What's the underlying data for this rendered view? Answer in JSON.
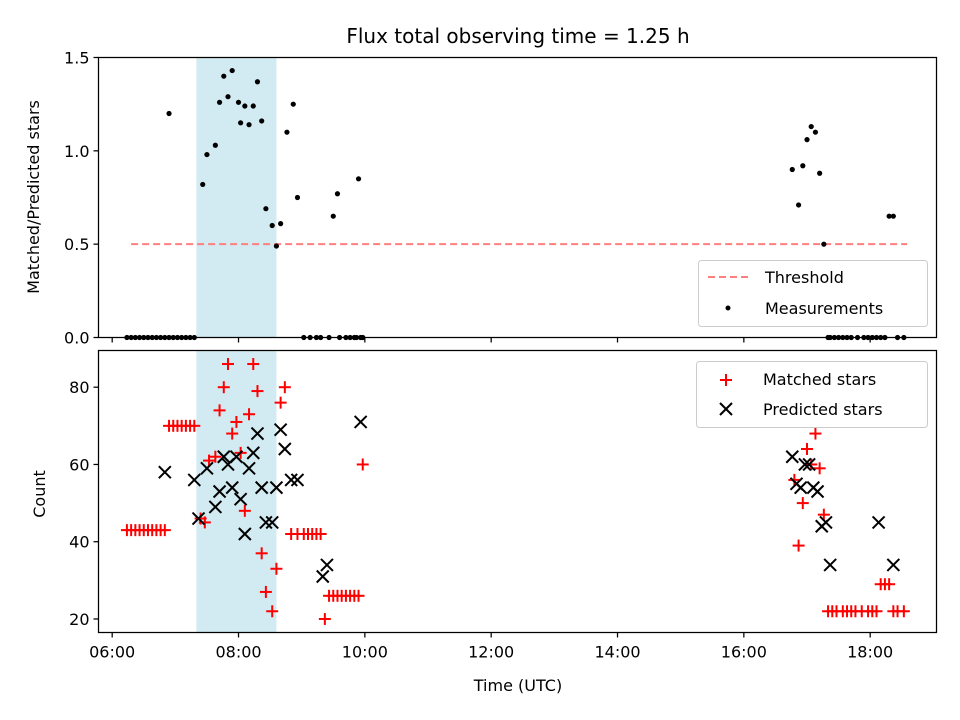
{
  "chart_data": [
    {
      "type": "scatter",
      "title": "Flux total observing time = 1.25 h",
      "xlabel": "",
      "ylabel": "Matched/Predicted stars",
      "xlim": [
        "05:47",
        "19:03"
      ],
      "ylim": [
        0,
        1.5
      ],
      "yticks": [
        "0.0",
        "0.5",
        "1.0",
        "1.5"
      ],
      "xticks": [
        "06:00",
        "08:00",
        "10:00",
        "12:00",
        "14:00",
        "16:00",
        "18:00"
      ],
      "xtick_labels_shown": false,
      "highlight_span": [
        "07:20",
        "08:36"
      ],
      "highlight_color": "#add8e6",
      "legend_position": "lower right",
      "threshold": {
        "name": "Threshold",
        "value": 0.5,
        "x": [
          "06:18",
          "18:35"
        ],
        "color": "#ff7f7f",
        "style": "dashed"
      },
      "series": [
        {
          "name": "Measurements",
          "color": "#000000",
          "marker": "dot",
          "x": [
            "06:14",
            "06:18",
            "06:22",
            "06:26",
            "06:30",
            "06:34",
            "06:38",
            "06:42",
            "06:46",
            "06:50",
            "06:54",
            "06:58",
            "07:02",
            "07:06",
            "07:10",
            "07:14",
            "07:18",
            "06:54",
            "07:26",
            "07:30",
            "07:38",
            "07:42",
            "07:46",
            "07:50",
            "07:54",
            "08:00",
            "08:02",
            "08:06",
            "08:10",
            "08:14",
            "08:18",
            "08:22",
            "08:26",
            "08:32",
            "08:36",
            "08:40",
            "08:46",
            "08:52",
            "08:56",
            "09:02",
            "09:08",
            "09:14",
            "09:18",
            "09:26",
            "09:30",
            "09:34",
            "09:36",
            "09:42",
            "09:46",
            "09:50",
            "09:52",
            "09:54",
            "09:56",
            "09:58",
            "16:46",
            "16:52",
            "16:56",
            "17:00",
            "17:04",
            "17:08",
            "17:12",
            "17:16",
            "17:20",
            "17:22",
            "17:26",
            "17:30",
            "17:34",
            "17:38",
            "17:42",
            "17:48",
            "17:54",
            "17:58",
            "18:02",
            "18:06",
            "18:10",
            "18:14",
            "18:18",
            "18:22",
            "18:26",
            "18:32"
          ],
          "y": [
            0,
            0,
            0,
            0,
            0,
            0,
            0,
            0,
            0,
            0,
            0,
            0,
            0,
            0,
            0,
            0,
            0,
            1.2,
            0.82,
            0.98,
            1.03,
            1.26,
            1.4,
            1.29,
            1.43,
            1.26,
            1.15,
            1.24,
            1.14,
            1.24,
            1.37,
            1.16,
            0.69,
            0.6,
            0.49,
            0.61,
            1.1,
            1.25,
            0.75,
            0,
            0,
            0,
            0,
            0,
            0.65,
            0.77,
            0,
            0,
            0,
            0,
            0,
            0.85,
            0,
            0,
            0.9,
            0.71,
            0.92,
            1.06,
            1.13,
            1.1,
            0.88,
            0.5,
            0,
            0,
            0,
            0,
            0,
            0,
            0,
            0,
            0,
            0,
            0,
            0,
            0,
            0,
            0.65,
            0.65,
            0,
            0
          ]
        }
      ]
    },
    {
      "type": "scatter",
      "title": "",
      "xlabel": "Time (UTC)",
      "ylabel": "Count",
      "xlim": [
        "05:47",
        "19:03"
      ],
      "ylim": [
        16.5,
        89.5
      ],
      "yticks": [
        "20",
        "40",
        "60",
        "80"
      ],
      "xticks": [
        "06:00",
        "08:00",
        "10:00",
        "12:00",
        "14:00",
        "16:00",
        "18:00"
      ],
      "highlight_span": [
        "07:20",
        "08:36"
      ],
      "highlight_color": "#add8e6",
      "legend_position": "upper right",
      "series": [
        {
          "name": "Matched stars",
          "color": "#ff0000",
          "marker": "plus",
          "x": [
            "06:14",
            "06:18",
            "06:22",
            "06:26",
            "06:30",
            "06:34",
            "06:38",
            "06:42",
            "06:46",
            "06:50",
            "06:54",
            "06:58",
            "07:02",
            "07:06",
            "07:10",
            "07:14",
            "07:18",
            "07:24",
            "07:28",
            "07:32",
            "07:38",
            "07:42",
            "07:46",
            "07:50",
            "07:54",
            "07:58",
            "08:02",
            "08:06",
            "08:10",
            "08:14",
            "08:18",
            "08:22",
            "08:26",
            "08:32",
            "08:36",
            "08:40",
            "08:44",
            "08:50",
            "08:56",
            "09:02",
            "09:06",
            "09:10",
            "09:14",
            "09:18",
            "09:22",
            "09:26",
            "09:30",
            "09:34",
            "09:38",
            "09:42",
            "09:46",
            "09:50",
            "09:54",
            "09:58",
            "16:48",
            "16:52",
            "16:56",
            "17:00",
            "17:04",
            "17:08",
            "17:12",
            "17:16",
            "17:20",
            "17:24",
            "17:28",
            "17:34",
            "17:38",
            "17:42",
            "17:46",
            "17:52",
            "17:58",
            "18:02",
            "18:06",
            "18:10",
            "18:14",
            "18:18",
            "18:22",
            "18:26",
            "18:32"
          ],
          "y": [
            43,
            43,
            43,
            43,
            43,
            43,
            43,
            43,
            43,
            43,
            70,
            70,
            70,
            70,
            70,
            70,
            70,
            46,
            45,
            61,
            62,
            74,
            80,
            86,
            68,
            71,
            63,
            48,
            73,
            86,
            79,
            37,
            27,
            22,
            33,
            76,
            80,
            42,
            42,
            42,
            42,
            42,
            42,
            42,
            20,
            26,
            26,
            26,
            26,
            26,
            26,
            26,
            26,
            60,
            56,
            39,
            50,
            64,
            60,
            68,
            59,
            47,
            22,
            22,
            22,
            22,
            22,
            22,
            22,
            22,
            22,
            22,
            22,
            29,
            29,
            29,
            22,
            22,
            22
          ]
        },
        {
          "name": "Predicted stars",
          "color": "#000000",
          "marker": "x",
          "x": [
            "06:50",
            "07:18",
            "07:22",
            "07:30",
            "07:38",
            "07:42",
            "07:46",
            "07:50",
            "07:54",
            "07:58",
            "08:02",
            "08:06",
            "08:10",
            "08:14",
            "08:18",
            "08:22",
            "08:26",
            "08:32",
            "08:36",
            "08:40",
            "08:44",
            "08:50",
            "08:56",
            "09:20",
            "09:24",
            "09:56",
            "16:46",
            "16:50",
            "16:54",
            "16:58",
            "17:02",
            "17:06",
            "17:10",
            "17:14",
            "17:18",
            "17:22",
            "18:08",
            "18:22"
          ],
          "y": [
            58,
            56,
            46,
            59,
            49,
            53,
            62,
            60,
            54,
            62,
            51,
            42,
            59,
            63,
            68,
            54,
            45,
            45,
            54,
            69,
            64,
            56,
            56,
            31,
            34,
            71,
            62,
            55,
            54,
            60,
            60,
            54,
            53,
            44,
            45,
            34,
            45,
            34
          ]
        }
      ]
    }
  ]
}
